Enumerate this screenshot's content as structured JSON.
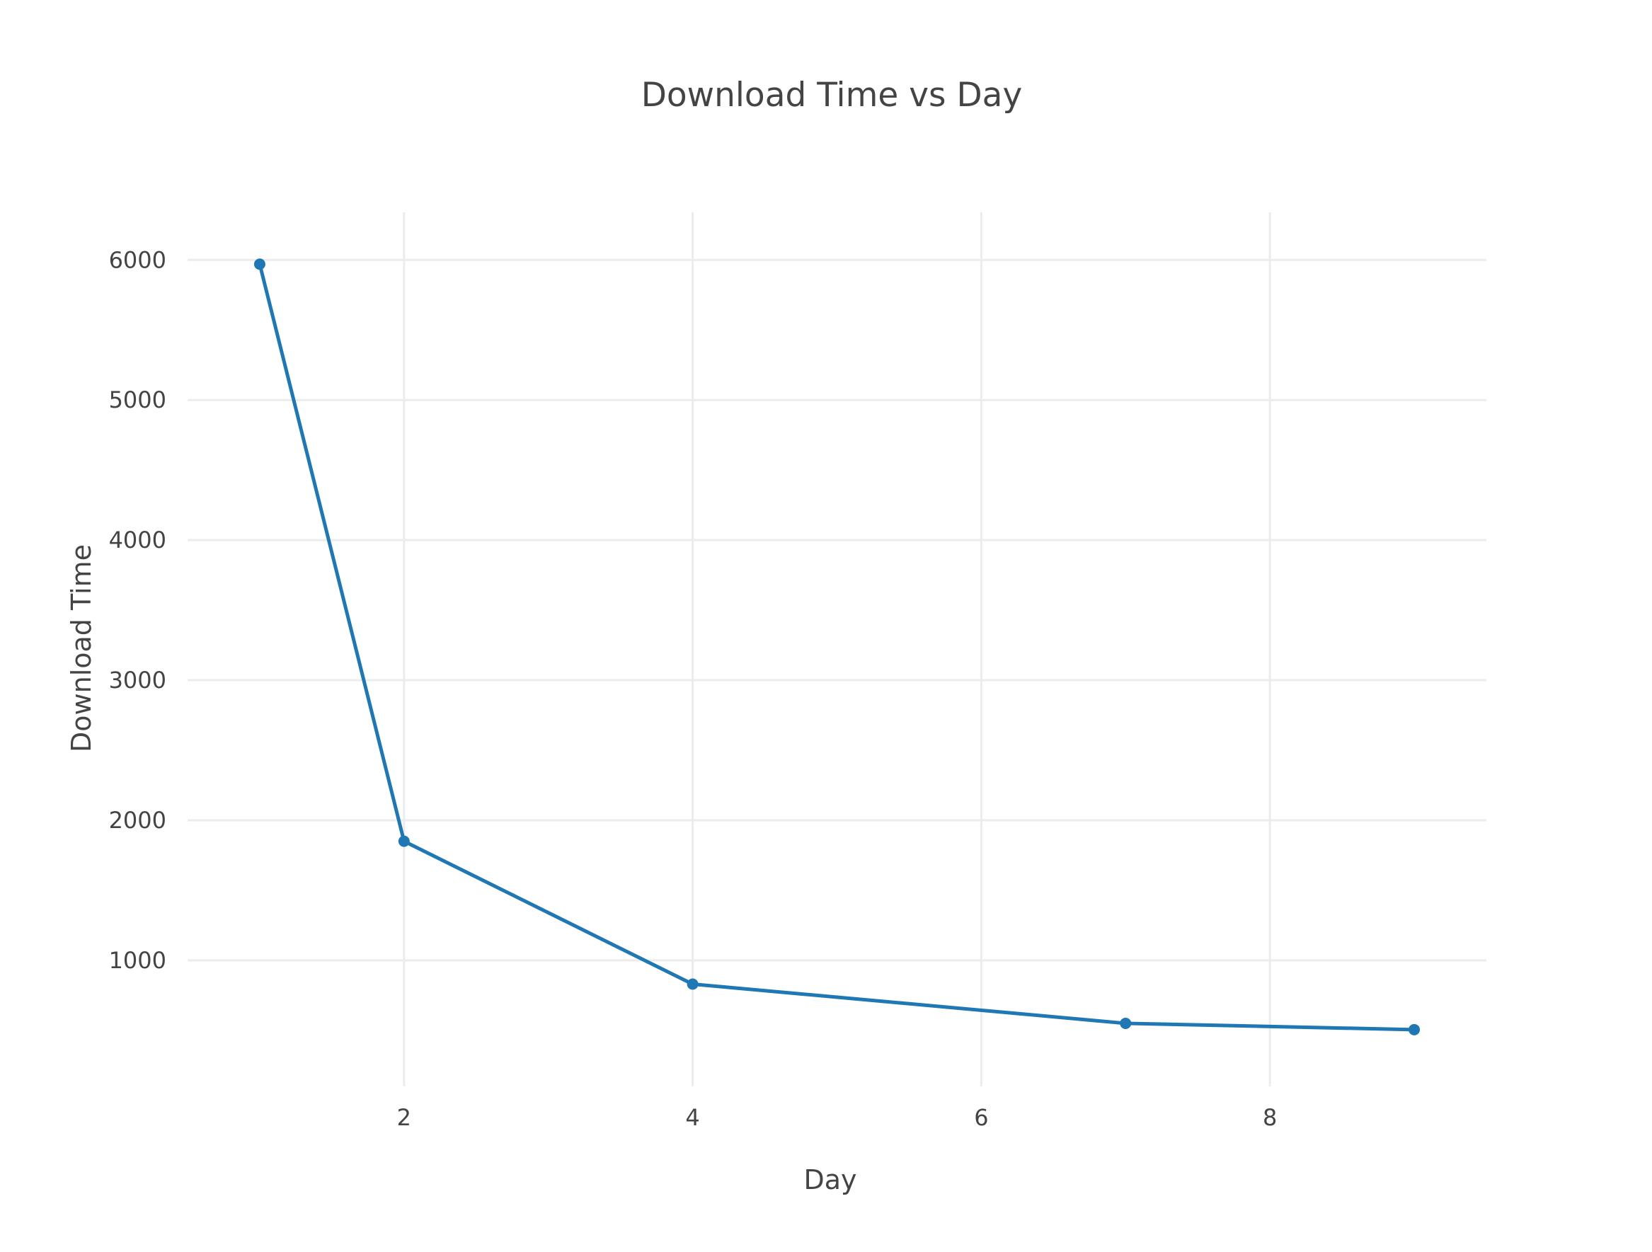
{
  "chart_data": {
    "type": "line",
    "title": "Download Time vs Day",
    "xlabel": "Day",
    "ylabel": "Download Time",
    "xlim": [
      0.5,
      9.5
    ],
    "ylim": [
      100,
      6340
    ],
    "x_ticks": [
      2,
      4,
      6,
      8
    ],
    "y_ticks": [
      1000,
      2000,
      3000,
      4000,
      5000,
      6000
    ],
    "grid": true,
    "legend": "none",
    "series": [
      {
        "x": [
          1,
          2,
          4,
          7,
          9
        ],
        "y": [
          5970,
          1850,
          830,
          550,
          505
        ],
        "color": "#1f77b4"
      }
    ]
  }
}
